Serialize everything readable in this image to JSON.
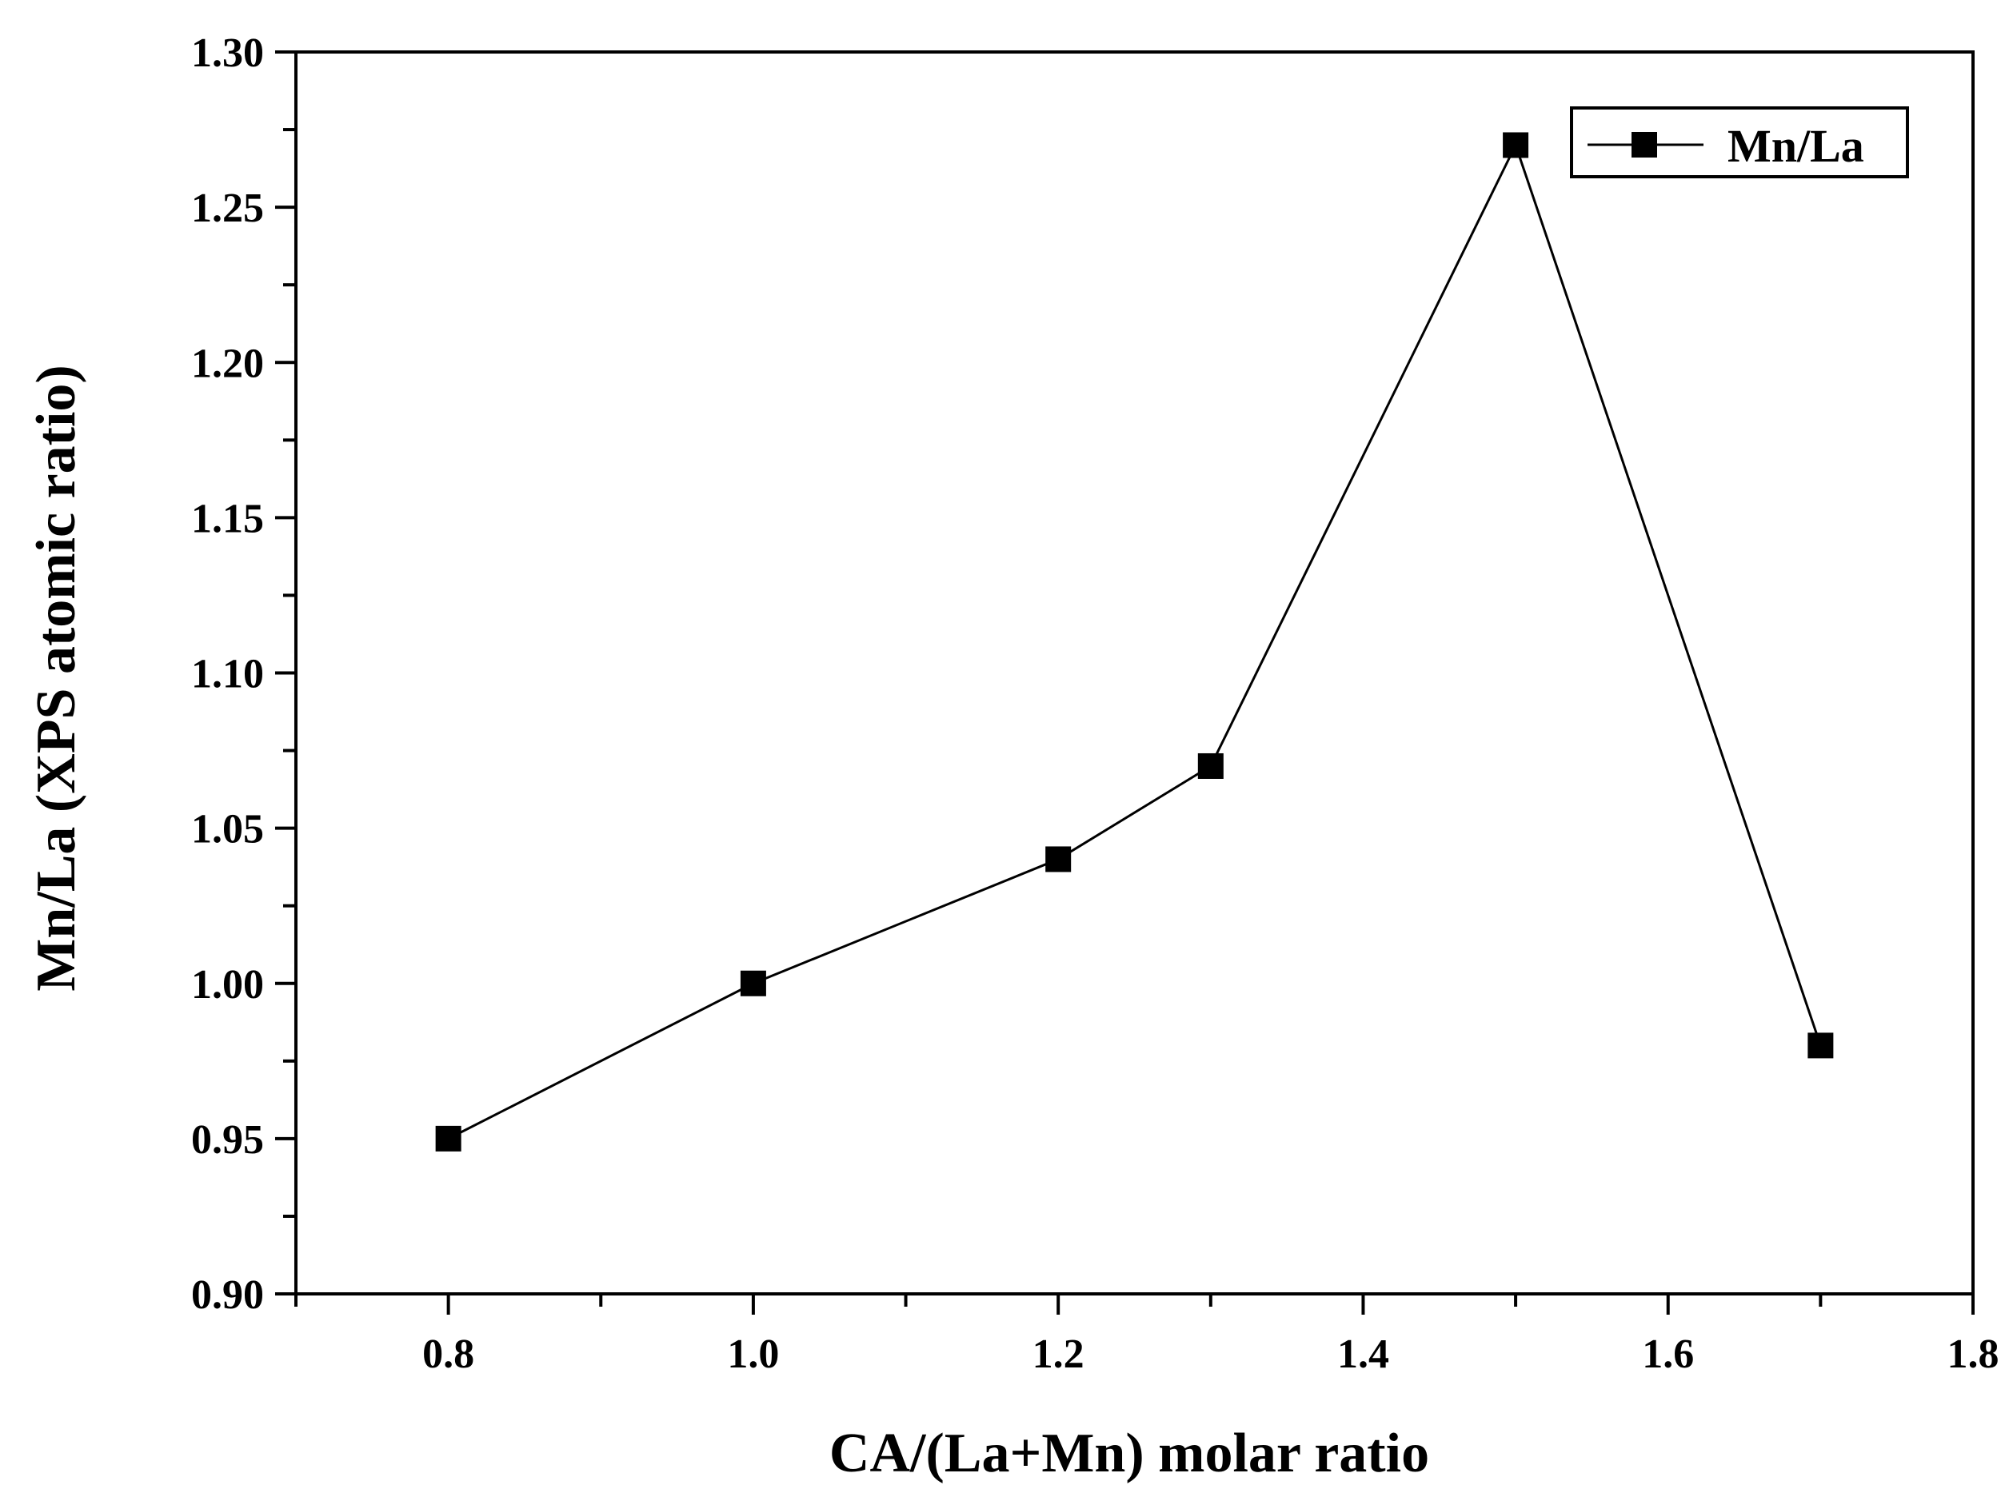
{
  "chart_data": {
    "type": "line",
    "title": "",
    "xlabel": "CA/(La+Mn) molar ratio",
    "ylabel": "Mn/La (XPS atomic ratio)",
    "xlim": [
      0.7,
      1.8
    ],
    "ylim": [
      0.9,
      1.3
    ],
    "x_ticks": [
      "0.8",
      "1.0",
      "1.2",
      "1.4",
      "1.6",
      "1.8"
    ],
    "y_ticks": [
      "0.90",
      "0.95",
      "1.00",
      "1.05",
      "1.10",
      "1.15",
      "1.20",
      "1.25",
      "1.30"
    ],
    "grid": false,
    "legend_position": "top-right",
    "marker": "square",
    "series": [
      {
        "name": "Mn/La",
        "x": [
          0.8,
          1.0,
          1.2,
          1.3,
          1.5,
          1.7
        ],
        "values": [
          0.95,
          1.0,
          1.04,
          1.07,
          1.27,
          0.98
        ]
      }
    ],
    "colors": {
      "line": "#000000",
      "marker": "#000000",
      "axis": "#000000",
      "background": "#ffffff"
    }
  }
}
